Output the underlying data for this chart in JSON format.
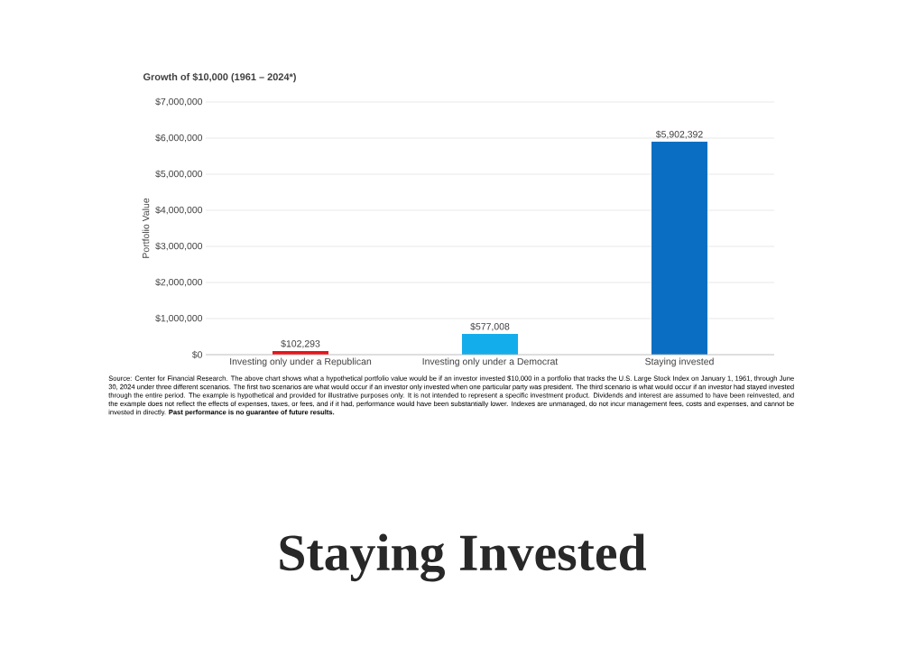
{
  "chart_data": {
    "type": "bar",
    "title": "Growth of $10,000 (1961 – 2024*)",
    "ylabel": "Portfolio Value",
    "categories": [
      "Investing only under a Republican",
      "Investing only under a Democrat",
      "Staying invested"
    ],
    "values": [
      102293,
      577008,
      5902392
    ],
    "colors": [
      "#e8141b",
      "#14adeb",
      "#0a6fc2"
    ],
    "value_labels": [
      "$102,293",
      "$577,008",
      "$5,902,392"
    ],
    "ylim": [
      0,
      7000000
    ],
    "yticks": [
      {
        "value": 0,
        "label": "$0"
      },
      {
        "value": 1000000,
        "label": "$1,000,000"
      },
      {
        "value": 2000000,
        "label": "$2,000,000"
      },
      {
        "value": 3000000,
        "label": "$3,000,000"
      },
      {
        "value": 4000000,
        "label": "$4,000,000"
      },
      {
        "value": 5000000,
        "label": "$5,000,000"
      },
      {
        "value": 6000000,
        "label": "$6,000,000"
      },
      {
        "value": 7000000,
        "label": "$7,000,000"
      }
    ],
    "grid": "y",
    "annotations": [
      "Source: Center for Financial Research. The above chart shows what a hypothetical portfolio value would be if an investor invested $10,000 in a portfolio that tracks the U.S. Large Stock Index on January 1, 1961, through June 30, 2024 under three different scenarios. The first two scenarios are what would occur if an investor only invested when one particular party was president. The third scenario is what would occur if an investor had stayed invested through the entire period. The example is hypothetical and provided for illustrative purposes only. It is not intended to represent a specific investment product. Dividends and interest are assumed to have been reinvested, and the example does not reflect the effects of expenses, taxes, or fees, and if it had, performance would have been substantially lower. Indexes are unmanaged, do not incur management fees, costs and expenses, and cannot be invested in directly. **Past performance is no guarantee of future results.**",
      "Staying Invested"
    ]
  }
}
